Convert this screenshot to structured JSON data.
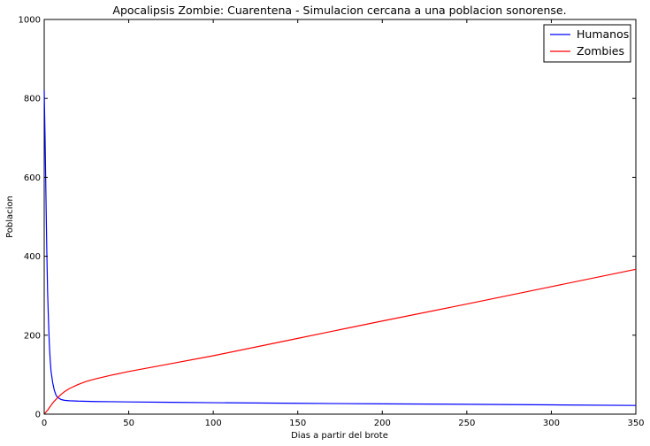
{
  "chart_data": {
    "type": "line",
    "title": "Apocalipsis Zombie: Cuarentena - Simulacion cercana a una poblacion sonorense.",
    "xlabel": "Dias a partir del brote",
    "ylabel": "Poblacion",
    "xlim": [
      0,
      350
    ],
    "ylim": [
      0,
      1000
    ],
    "xticks": [
      "0",
      "50",
      "100",
      "150",
      "200",
      "250",
      "300",
      "350"
    ],
    "yticks": [
      "0",
      "200",
      "400",
      "600",
      "800",
      "1000"
    ],
    "grid": false,
    "legend_position": "top-right",
    "series": [
      {
        "name": "Humanos",
        "color": "#0000ff",
        "x": [
          0,
          0.5,
          1,
          1.5,
          2,
          2.5,
          3,
          3.5,
          4,
          5,
          6,
          7,
          8,
          10,
          12,
          15,
          20,
          25,
          30,
          40,
          50,
          75,
          100,
          150,
          200,
          250,
          300,
          350
        ],
        "y": [
          820,
          700,
          560,
          420,
          310,
          240,
          180,
          140,
          110,
          80,
          60,
          48,
          42,
          37,
          35,
          34,
          33,
          32.5,
          32,
          31.5,
          31,
          30,
          29,
          27.5,
          26,
          25,
          23.5,
          22
        ]
      },
      {
        "name": "Zombies",
        "color": "#ff0000",
        "x": [
          0,
          1,
          2,
          3,
          4,
          5,
          6,
          8,
          10,
          12,
          15,
          20,
          25,
          30,
          40,
          50,
          75,
          100,
          150,
          200,
          250,
          300,
          350
        ],
        "y": [
          0,
          5,
          10,
          16,
          22,
          28,
          33,
          42,
          50,
          57,
          65,
          75,
          83,
          89,
          99,
          108,
          128,
          148,
          192,
          236,
          279,
          323,
          367
        ]
      }
    ]
  }
}
